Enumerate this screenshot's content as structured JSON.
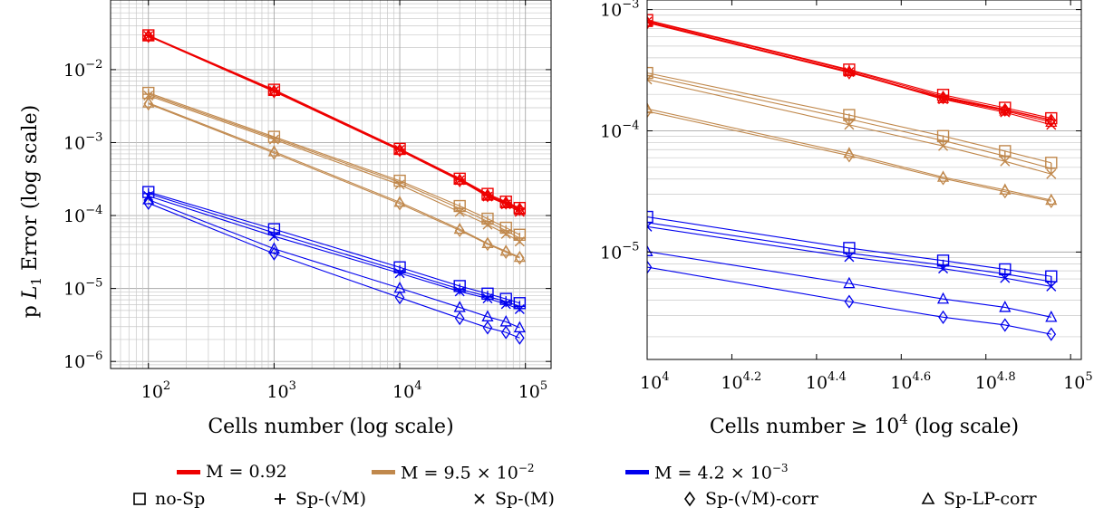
{
  "chart_data": [
    {
      "type": "line",
      "xscale": "log",
      "yscale": "log",
      "xlabel": "Cells number (log scale)",
      "ylabel": "p L1 Error (log scale)",
      "xlim": [
        50,
        160000
      ],
      "ylim": [
        8e-07,
        0.09
      ],
      "grid": true,
      "x": [
        100,
        1000,
        10000,
        30000,
        50000,
        70000,
        90000
      ],
      "xticks": [
        {
          "value": 100,
          "base": "10",
          "exp": "2"
        },
        {
          "value": 1000,
          "base": "10",
          "exp": "3"
        },
        {
          "value": 10000,
          "base": "10",
          "exp": "4"
        },
        {
          "value": 100000,
          "base": "10",
          "exp": "5"
        }
      ],
      "yticks": [
        {
          "value": 1e-06,
          "base": "10",
          "exp": "−6"
        },
        {
          "value": 1e-05,
          "base": "10",
          "exp": "−5"
        },
        {
          "value": 0.0001,
          "base": "10",
          "exp": "−4"
        },
        {
          "value": 0.001,
          "base": "10",
          "exp": "−3"
        },
        {
          "value": 0.01,
          "base": "10",
          "exp": "−2"
        }
      ],
      "series": [
        {
          "name": "no-Sp",
          "group": "M1",
          "marker": "square",
          "values": [
            0.0295,
            0.0053,
            0.00082,
            0.00032,
            0.000198,
            0.000155,
            0.000127
          ]
        },
        {
          "name": "Sp-(√M)",
          "group": "M1",
          "marker": "plus",
          "values": [
            0.0293,
            0.0052,
            0.00081,
            0.000315,
            0.000192,
            0.00015,
            0.000123
          ]
        },
        {
          "name": "Sp-(M)",
          "group": "M1",
          "marker": "cross",
          "values": [
            0.029,
            0.0051,
            0.000795,
            0.000305,
            0.000182,
            0.000142,
            0.000112
          ]
        },
        {
          "name": "Sp-(√M)-corr",
          "group": "M1",
          "marker": "diamond",
          "values": [
            0.0287,
            0.005,
            0.00078,
            0.000302,
            0.000188,
            0.000149,
            0.000122
          ]
        },
        {
          "name": "Sp-LP-corr",
          "group": "M1",
          "marker": "triangle",
          "values": [
            0.0289,
            0.00505,
            0.000785,
            0.000308,
            0.000185,
            0.000146,
            0.000118
          ]
        },
        {
          "name": "no-Sp",
          "group": "M2",
          "marker": "square",
          "values": [
            0.0048,
            0.0012,
            0.0003,
            0.000135,
            9.05e-05,
            6.8e-05,
            5.45e-05
          ]
        },
        {
          "name": "Sp-(√M)",
          "group": "M2",
          "marker": "plus",
          "values": [
            0.0046,
            0.00115,
            0.000285,
            0.000125,
            8.3e-05,
            6.2e-05,
            4.9e-05
          ]
        },
        {
          "name": "Sp-(M)",
          "group": "M2",
          "marker": "cross",
          "values": [
            0.0044,
            0.0011,
            0.000265,
            0.000112,
            7.5e-05,
            5.6e-05,
            4.4e-05
          ]
        },
        {
          "name": "Sp-(√M)-corr",
          "group": "M2",
          "marker": "diamond",
          "values": [
            0.0034,
            0.00072,
            0.000145,
            6.25e-05,
            4.05e-05,
            3.15e-05,
            2.62e-05
          ]
        },
        {
          "name": "Sp-LP-corr",
          "group": "M2",
          "marker": "triangle",
          "values": [
            0.0035,
            0.00075,
            0.000152,
            6.5e-05,
            4.15e-05,
            3.25e-05,
            2.68e-05
          ]
        },
        {
          "name": "no-Sp",
          "group": "M3",
          "marker": "square",
          "values": [
            0.00021,
            6.5e-05,
            1.95e-05,
            1.08e-05,
            8.5e-06,
            7.2e-06,
            6.3e-06
          ]
        },
        {
          "name": "Sp-(√M)",
          "group": "M3",
          "marker": "plus",
          "values": [
            0.0002,
            5.8e-05,
            1.75e-05,
            9.8e-06,
            7.8e-06,
            6.6e-06,
            5.7e-06
          ]
        },
        {
          "name": "Sp-(M)",
          "group": "M3",
          "marker": "cross",
          "values": [
            0.000185,
            5.2e-05,
            1.62e-05,
            9.1e-06,
            7.3e-06,
            6.1e-06,
            5.2e-06
          ]
        },
        {
          "name": "Sp-(√M)-corr",
          "group": "M3",
          "marker": "diamond",
          "values": [
            0.000148,
            3e-05,
            7.5e-06,
            3.9e-06,
            2.9e-06,
            2.5e-06,
            2.1e-06
          ]
        },
        {
          "name": "Sp-LP-corr",
          "group": "M3",
          "marker": "triangle",
          "values": [
            0.000165,
            3.5e-05,
            1.01e-05,
            5.5e-06,
            4.1e-06,
            3.5e-06,
            2.9e-06
          ]
        }
      ]
    },
    {
      "type": "line",
      "xscale": "log",
      "yscale": "log",
      "xlabel": "Cells number ≥ 10^4 (log scale)",
      "ylabel": "",
      "xlim": [
        10000,
        106000
      ],
      "ylim": [
        1.3e-06,
        0.0012
      ],
      "grid": "horizontal",
      "x": [
        10000,
        30000,
        50000,
        70000,
        90000
      ],
      "xticks": [
        {
          "value": 10000,
          "base": "10",
          "exp": "4"
        },
        {
          "value": 15849,
          "base": "10",
          "exp": "4.2"
        },
        {
          "value": 25119,
          "base": "10",
          "exp": "4.4"
        },
        {
          "value": 39811,
          "base": "10",
          "exp": "4.6"
        },
        {
          "value": 63096,
          "base": "10",
          "exp": "4.8"
        },
        {
          "value": 100000,
          "base": "10",
          "exp": "5"
        }
      ],
      "yticks": [
        {
          "value": 1e-05,
          "base": "10",
          "exp": "−5"
        },
        {
          "value": 0.0001,
          "base": "10",
          "exp": "−4"
        },
        {
          "value": 0.001,
          "base": "10",
          "exp": "−3"
        }
      ],
      "series": [
        {
          "name": "no-Sp",
          "group": "M1",
          "marker": "square",
          "values": [
            0.00082,
            0.00032,
            0.000198,
            0.000155,
            0.000127
          ]
        },
        {
          "name": "Sp-(√M)",
          "group": "M1",
          "marker": "plus",
          "values": [
            0.00081,
            0.000315,
            0.000192,
            0.00015,
            0.000123
          ]
        },
        {
          "name": "Sp-(M)",
          "group": "M1",
          "marker": "cross",
          "values": [
            0.000795,
            0.000305,
            0.000182,
            0.000142,
            0.000112
          ]
        },
        {
          "name": "Sp-(√M)-corr",
          "group": "M1",
          "marker": "diamond",
          "values": [
            0.00078,
            0.000302,
            0.000188,
            0.000149,
            0.000122
          ]
        },
        {
          "name": "Sp-LP-corr",
          "group": "M1",
          "marker": "triangle",
          "values": [
            0.000785,
            0.000308,
            0.000185,
            0.000146,
            0.000118
          ]
        },
        {
          "name": "no-Sp",
          "group": "M2",
          "marker": "square",
          "values": [
            0.0003,
            0.000135,
            9.05e-05,
            6.8e-05,
            5.45e-05
          ]
        },
        {
          "name": "Sp-(√M)",
          "group": "M2",
          "marker": "plus",
          "values": [
            0.000285,
            0.000125,
            8.3e-05,
            6.2e-05,
            4.9e-05
          ]
        },
        {
          "name": "Sp-(M)",
          "group": "M2",
          "marker": "cross",
          "values": [
            0.000265,
            0.000112,
            7.5e-05,
            5.6e-05,
            4.4e-05
          ]
        },
        {
          "name": "Sp-(√M)-corr",
          "group": "M2",
          "marker": "diamond",
          "values": [
            0.000145,
            6.25e-05,
            4.05e-05,
            3.15e-05,
            2.62e-05
          ]
        },
        {
          "name": "Sp-LP-corr",
          "group": "M2",
          "marker": "triangle",
          "values": [
            0.000152,
            6.5e-05,
            4.15e-05,
            3.25e-05,
            2.68e-05
          ]
        },
        {
          "name": "no-Sp",
          "group": "M3",
          "marker": "square",
          "values": [
            1.95e-05,
            1.08e-05,
            8.5e-06,
            7.2e-06,
            6.3e-06
          ]
        },
        {
          "name": "Sp-(√M)",
          "group": "M3",
          "marker": "plus",
          "values": [
            1.75e-05,
            9.8e-06,
            7.8e-06,
            6.6e-06,
            5.7e-06
          ]
        },
        {
          "name": "Sp-(M)",
          "group": "M3",
          "marker": "cross",
          "values": [
            1.62e-05,
            9.1e-06,
            7.3e-06,
            6.1e-06,
            5.2e-06
          ]
        },
        {
          "name": "Sp-(√M)-corr",
          "group": "M3",
          "marker": "diamond",
          "values": [
            7.5e-06,
            3.9e-06,
            2.9e-06,
            2.5e-06,
            2.1e-06
          ]
        },
        {
          "name": "Sp-LP-corr",
          "group": "M3",
          "marker": "triangle",
          "values": [
            1.01e-05,
            5.5e-06,
            4.1e-06,
            3.5e-06,
            2.9e-06
          ]
        }
      ]
    }
  ],
  "groups": [
    {
      "id": "M1",
      "label": "M = 0.92",
      "color": "#ee0000"
    },
    {
      "id": "M2",
      "label": "M = 9.5 × 10^−2",
      "color": "#c0884c"
    },
    {
      "id": "M3",
      "label": "M = 4.2 × 10^−3",
      "color": "#0000ee"
    }
  ],
  "legend": {
    "placement": "bottom",
    "colors": [
      {
        "pre": "M = 0.92",
        "sup": "",
        "color": "#ee0000"
      },
      {
        "pre": "M = 9.5 × 10",
        "sup": "−2",
        "color": "#c0884c"
      },
      {
        "pre": "M = 4.2 × 10",
        "sup": "−3",
        "color": "#0000ee"
      }
    ],
    "markers": [
      {
        "marker": "square",
        "label": "no-Sp"
      },
      {
        "marker": "plus",
        "label": "Sp-(√M)"
      },
      {
        "marker": "cross",
        "label": "Sp-(M)"
      },
      {
        "marker": "diamond",
        "label": "Sp-(√M)-corr"
      },
      {
        "marker": "triangle",
        "label": "Sp-LP-corr"
      }
    ]
  }
}
